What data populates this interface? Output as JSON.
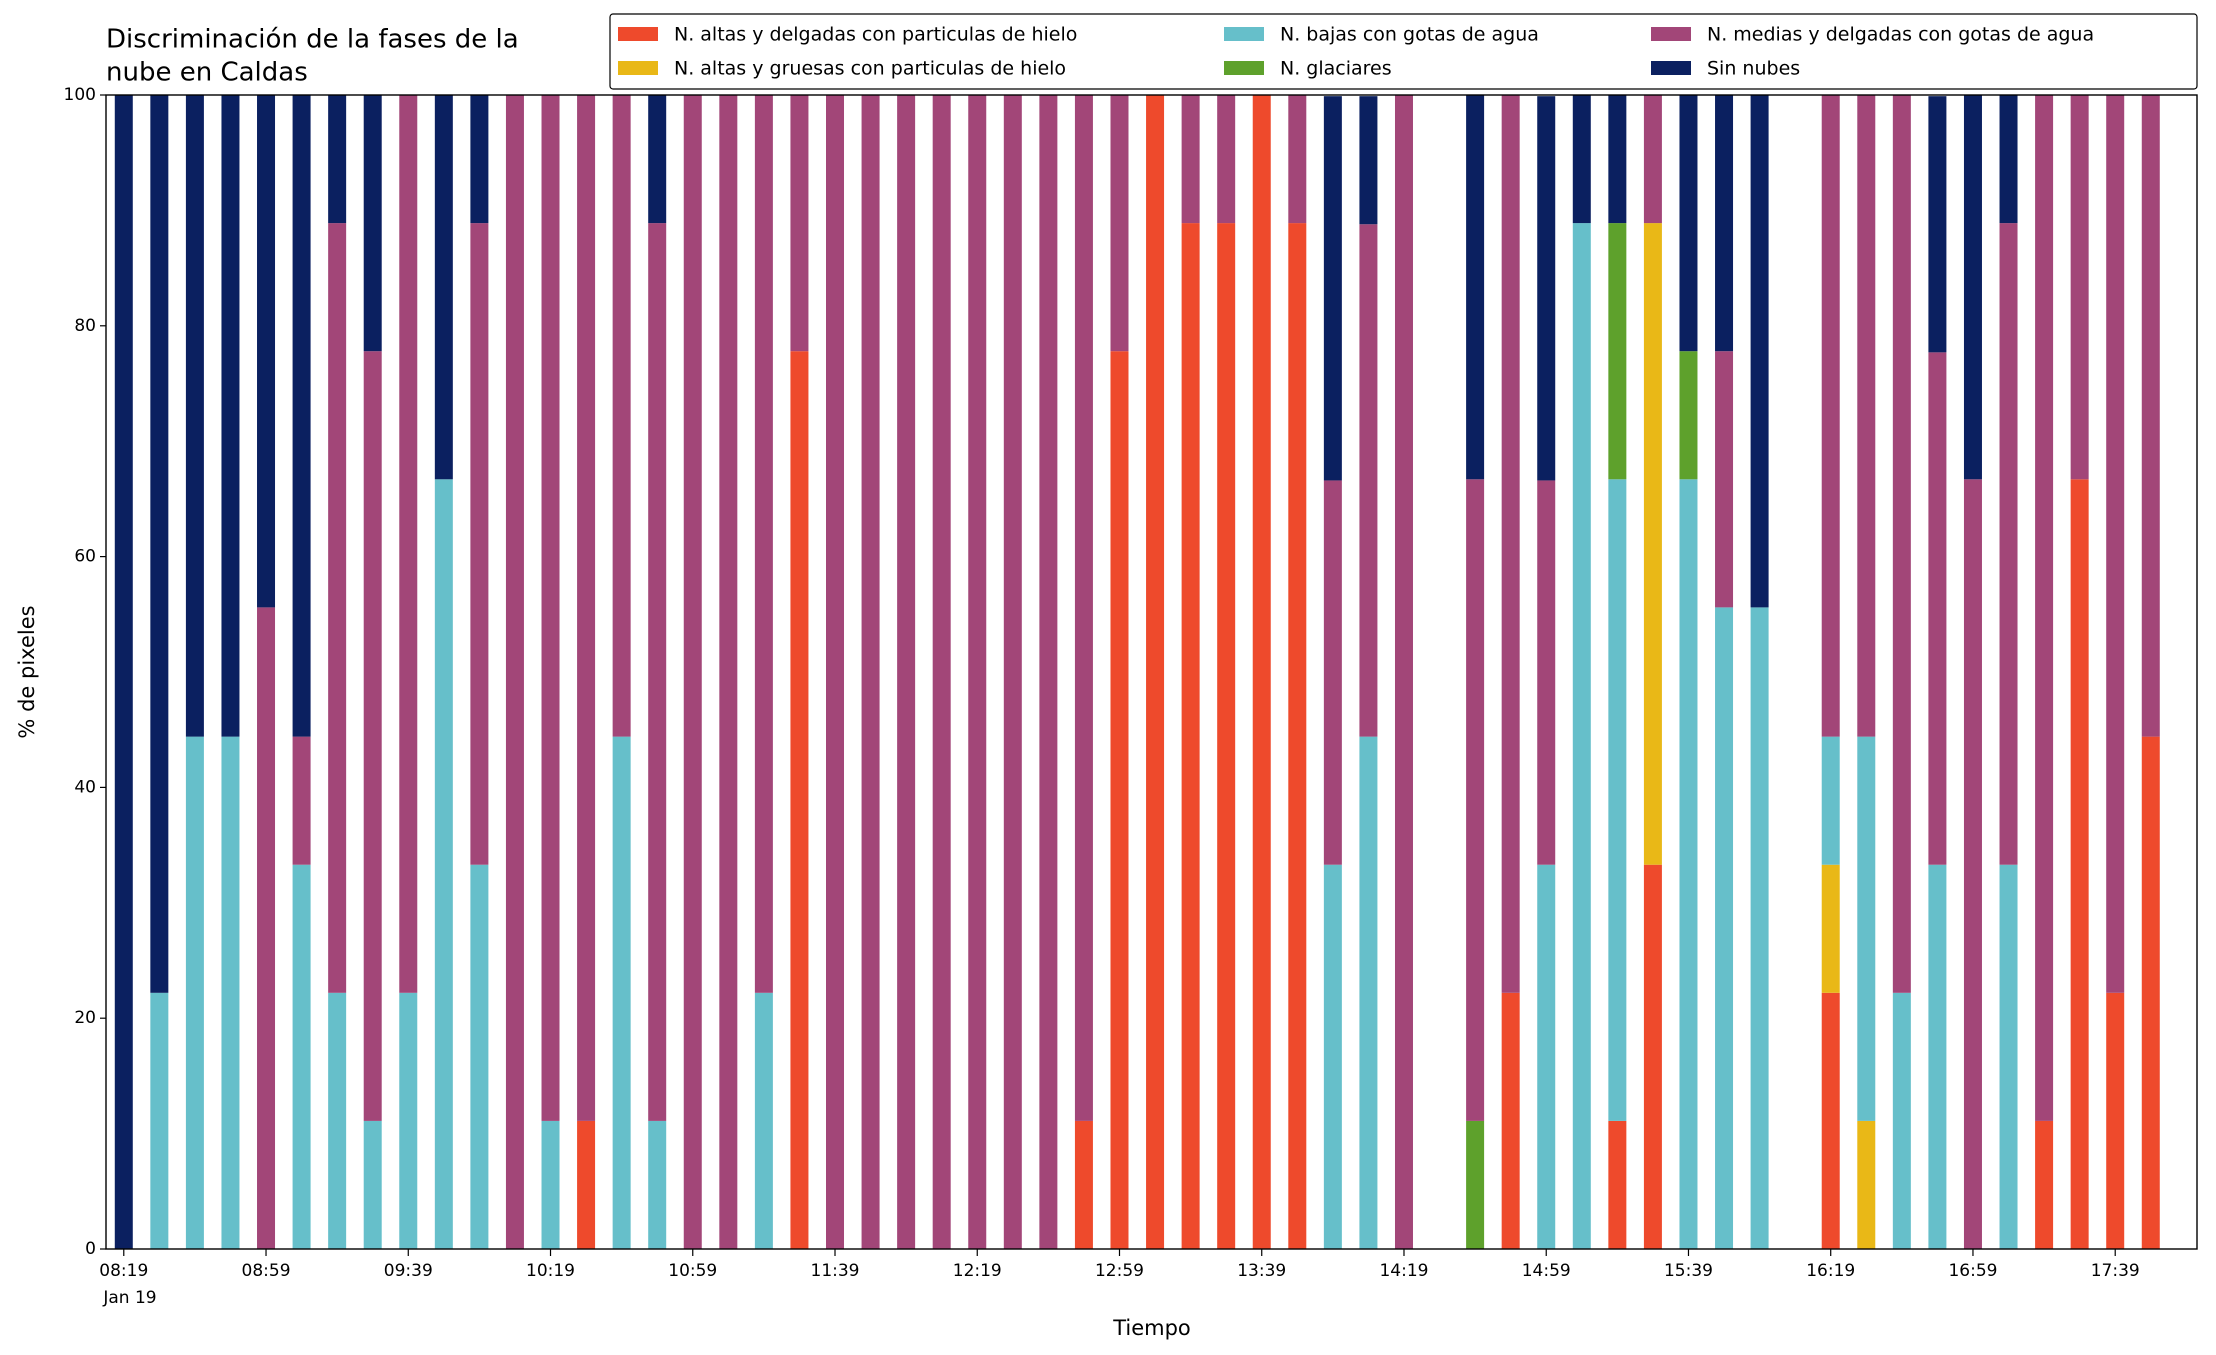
{
  "chart_data": {
    "type": "stacked_bar",
    "title": [
      "Discriminación de la fases de la",
      "nube en Caldas"
    ],
    "xlabel": "Tiempo",
    "ylabel": "% de pixeles",
    "date_label": "Jan 19",
    "x": [
      "08:19",
      "08:29",
      "08:39",
      "08:49",
      "08:59",
      "09:09",
      "09:19",
      "09:29",
      "09:39",
      "09:49",
      "09:59",
      "10:09",
      "10:19",
      "10:29",
      "10:39",
      "10:49",
      "10:59",
      "11:09",
      "11:19",
      "11:29",
      "11:39",
      "11:49",
      "11:59",
      "12:09",
      "12:19",
      "12:29",
      "12:39",
      "12:49",
      "12:59",
      "13:09",
      "13:19",
      "13:29",
      "13:39",
      "13:49",
      "13:59",
      "14:09",
      "14:19",
      "14:39",
      "14:49",
      "14:59",
      "15:09",
      "15:19",
      "15:29",
      "15:39",
      "15:49",
      "15:59",
      "16:19",
      "16:29",
      "16:39",
      "16:49",
      "16:59",
      "17:09",
      "17:19",
      "17:29",
      "17:39",
      "17:49"
    ],
    "xlim": [
      "08:14",
      "18:02"
    ],
    "xticks": [
      "08:19",
      "08:59",
      "09:39",
      "10:19",
      "10:59",
      "11:39",
      "12:19",
      "12:59",
      "13:39",
      "14:19",
      "14:59",
      "15:39",
      "16:19",
      "16:59",
      "17:39"
    ],
    "ylim": [
      0,
      100
    ],
    "yticks": [
      0,
      20,
      40,
      60,
      80,
      100
    ],
    "series": [
      {
        "name": "N. altas y delgadas con particulas de hielo",
        "color": "#ee4a2c",
        "values": [
          0,
          0,
          0,
          0,
          0,
          0,
          0,
          0,
          0,
          0,
          0,
          0,
          0,
          11.1,
          0,
          0,
          0,
          0,
          0,
          77.8,
          0,
          0,
          0,
          0,
          0,
          0,
          0,
          11.1,
          77.8,
          100,
          88.9,
          88.9,
          100,
          88.9,
          0,
          0,
          0,
          0,
          22.2,
          0,
          0,
          11.1,
          33.3,
          0,
          0,
          0,
          22.2,
          0,
          0,
          0,
          0,
          0,
          11.1,
          66.7,
          22.2,
          44.4
        ]
      },
      {
        "name": "N. altas y gruesas con particulas de hielo",
        "color": "#e9b817",
        "values": [
          0,
          0,
          0,
          0,
          0,
          0,
          0,
          0,
          0,
          0,
          0,
          0,
          0,
          0,
          0,
          0,
          0,
          0,
          0,
          0,
          0,
          0,
          0,
          0,
          0,
          0,
          0,
          0,
          0,
          0,
          0,
          0,
          0,
          0,
          0,
          0,
          0,
          0,
          0,
          0,
          0,
          0,
          55.6,
          0,
          0,
          0,
          11.1,
          11.1,
          0,
          0,
          0,
          0,
          0,
          0,
          0,
          0
        ]
      },
      {
        "name": "N. bajas con gotas de agua",
        "color": "#66bfca",
        "values": [
          0,
          22.2,
          44.4,
          44.4,
          0,
          33.3,
          22.2,
          11.1,
          22.2,
          66.7,
          33.3,
          0,
          11.1,
          0,
          44.4,
          11.1,
          0,
          0,
          22.2,
          0,
          0,
          0,
          0,
          0,
          0,
          0,
          0,
          0,
          0,
          0,
          0,
          0,
          0,
          0,
          33.3,
          44.4,
          0,
          0,
          0,
          33.3,
          88.9,
          55.6,
          0,
          66.7,
          55.6,
          55.6,
          11.1,
          33.3,
          22.2,
          33.3,
          0,
          33.3,
          0,
          0,
          0,
          0
        ]
      },
      {
        "name": "N. glaciares",
        "color": "#5ea12c",
        "values": [
          0,
          0,
          0,
          0,
          0,
          0,
          0,
          0,
          0,
          0,
          0,
          0,
          0,
          0,
          0,
          0,
          0,
          0,
          0,
          0,
          0,
          0,
          0,
          0,
          0,
          0,
          0,
          0,
          0,
          0,
          0,
          0,
          0,
          0,
          0,
          0,
          0,
          11.1,
          0,
          0,
          0,
          22.2,
          0,
          11.1,
          0,
          0,
          0,
          0,
          0,
          0,
          0,
          0,
          0,
          0,
          0,
          0
        ]
      },
      {
        "name": "N. medias y delgadas con gotas de agua",
        "color": "#a24678",
        "values": [
          0,
          0,
          0,
          0,
          55.6,
          11.1,
          66.7,
          66.7,
          77.8,
          0,
          55.6,
          100,
          88.9,
          88.9,
          55.6,
          77.8,
          100,
          100,
          77.8,
          22.2,
          100,
          100,
          100,
          100,
          100,
          100,
          100,
          88.9,
          22.2,
          0,
          11.1,
          11.1,
          0,
          11.1,
          33.3,
          44.4,
          100,
          55.6,
          77.8,
          33.3,
          0,
          0,
          11.1,
          0,
          22.2,
          0,
          55.6,
          55.6,
          77.8,
          44.4,
          66.7,
          55.6,
          88.9,
          33.3,
          77.8,
          55.6
        ]
      },
      {
        "name": "Sin nubes",
        "color": "#0b2060",
        "values": [
          100,
          77.8,
          55.6,
          55.6,
          44.4,
          55.6,
          11.1,
          22.2,
          0,
          33.3,
          11.1,
          0,
          0,
          0,
          0,
          11.1,
          0,
          0,
          0,
          0,
          0,
          0,
          0,
          0,
          0,
          0,
          0,
          0,
          0,
          0,
          0,
          0,
          0,
          0,
          33.3,
          11.1,
          0,
          33.3,
          0,
          33.3,
          11.1,
          11.1,
          0,
          22.2,
          22.2,
          44.4,
          0,
          0,
          0,
          22.2,
          33.3,
          11.1,
          0,
          0,
          0,
          0
        ]
      }
    ]
  }
}
